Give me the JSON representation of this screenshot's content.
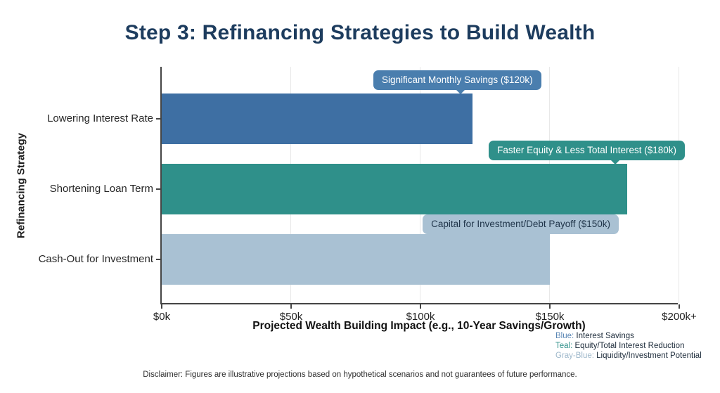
{
  "header": {
    "title": "Step 3: Refinancing Strategies to Build Wealth",
    "title_color": "#1d3c5e"
  },
  "chart_data": {
    "type": "bar",
    "orientation": "horizontal",
    "title": "Step 3: Refinancing Strategies to Build Wealth",
    "xlabel": "Projected Wealth Building Impact (e.g., 10-Year Savings/Growth)",
    "ylabel": "Refinancing Strategy",
    "categories": [
      "Lowering Interest Rate",
      "Shortening Loan Term",
      "Cash-Out for Investment"
    ],
    "values": [
      120,
      180,
      150
    ],
    "value_unit": "$k (10-year impact)",
    "xlim": [
      0,
      200
    ],
    "x_ticks": [
      {
        "value": 0,
        "label": "$0k"
      },
      {
        "value": 50,
        "label": "$50k"
      },
      {
        "value": 100,
        "label": "$100k"
      },
      {
        "value": 150,
        "label": "$150k"
      },
      {
        "value": 200,
        "label": "$200k+"
      }
    ],
    "grid": true,
    "legend_position": "bottom-right",
    "bars": [
      {
        "category": "Lowering Interest Rate",
        "value": 120,
        "color": "#3e6fa3",
        "annotation": {
          "text": "Significant Monthly Savings ($120k)",
          "bg": "#4a7eae",
          "fg": "#ffffff",
          "pointer": true
        }
      },
      {
        "category": "Shortening Loan Term",
        "value": 180,
        "color": "#2f908a",
        "annotation": {
          "text": "Faster Equity & Less Total Interest ($180k)",
          "bg": "#2f908a",
          "fg": "#ffffff",
          "pointer": true
        }
      },
      {
        "category": "Cash-Out for Investment",
        "value": 150,
        "color": "#a9c1d3",
        "annotation": {
          "text": "Capital for Investment/Debt Payoff ($150k)",
          "bg": "#a9c1d3",
          "fg": "#1e3348",
          "pointer": false
        }
      }
    ],
    "legend": [
      {
        "prefix": "Blue:",
        "label": " Interest Savings",
        "color": "#5b87b5"
      },
      {
        "prefix": "Teal:",
        "label": " Equity/Total Interest Reduction",
        "color": "#2f908a"
      },
      {
        "prefix": "Gray-Blue:",
        "label": " Liquidity/Investment Potential",
        "color": "#9db7ca"
      }
    ]
  },
  "footer": {
    "disclaimer": "Disclaimer: Figures are illustrative projections based on hypothetical scenarios and not guarantees of future performance."
  }
}
